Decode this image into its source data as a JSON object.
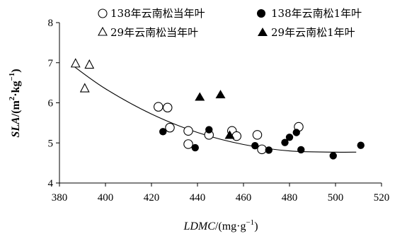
{
  "chart_data": {
    "type": "scatter",
    "xlabel": {
      "italic": "LDMC",
      "plain": "/(mg·g",
      "sup": "−1",
      "close": ")"
    },
    "ylabel": {
      "italic": "SLA",
      "plain": "/(m",
      "sup1": "2",
      "mid": "·kg",
      "sup2": "−1",
      "close": ")"
    },
    "xlim": [
      380,
      520
    ],
    "ylim": [
      4,
      8
    ],
    "x_ticks": [
      "380",
      "400",
      "420",
      "440",
      "460",
      "480",
      "500",
      "520"
    ],
    "y_ticks": [
      "4",
      "5",
      "6",
      "7",
      "8"
    ],
    "grid": false,
    "legend_position": "top",
    "series": [
      {
        "name": "138年云南松当年叶",
        "marker": "open-circle",
        "x": [
          423,
          427,
          428,
          436,
          436,
          445,
          455,
          457,
          466,
          468,
          484
        ],
        "y": [
          5.9,
          5.88,
          5.38,
          5.3,
          4.97,
          5.2,
          5.3,
          5.17,
          5.2,
          4.84,
          5.4
        ]
      },
      {
        "name": "138年云南松1年叶",
        "marker": "filled-circle",
        "x": [
          425,
          439,
          445,
          465,
          471,
          478,
          480,
          483,
          485,
          499,
          511
        ],
        "y": [
          5.28,
          4.88,
          5.33,
          4.93,
          4.82,
          5.01,
          5.14,
          5.26,
          4.83,
          4.68,
          4.94
        ]
      },
      {
        "name": "29年云南松当年叶",
        "marker": "open-triangle",
        "x": [
          387,
          391,
          393
        ],
        "y": [
          6.98,
          6.36,
          6.95
        ]
      },
      {
        "name": "29年云南松1年叶",
        "marker": "filled-triangle",
        "x": [
          441,
          450,
          454
        ],
        "y": [
          6.14,
          6.2,
          5.19
        ]
      }
    ],
    "trendline": {
      "type": "polynomial",
      "x": [
        386,
        400,
        420,
        440,
        460,
        480,
        500,
        509
      ],
      "y": [
        6.92,
        6.35,
        5.72,
        5.26,
        4.96,
        4.8,
        4.77,
        4.77
      ]
    }
  }
}
